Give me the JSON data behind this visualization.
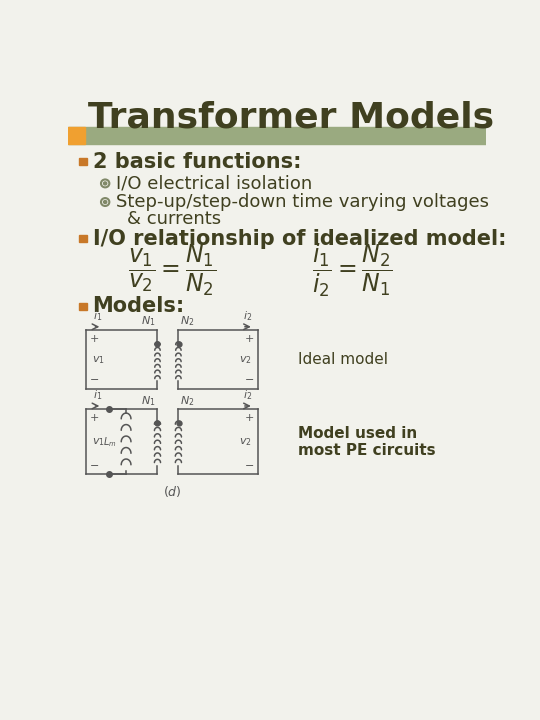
{
  "title": "Transformer Models",
  "title_color": "#404020",
  "title_fontsize": 26,
  "bg_color": "#f2f2ec",
  "header_bar_color": "#9aaa80",
  "header_orange_color": "#f0a030",
  "bullet_color": "#c87828",
  "sub_bullet_color": "#808868",
  "text_color": "#404020",
  "bullet1_text": "2 basic functions:",
  "sub1_text": "I/O electrical isolation",
  "sub2_line1": "Step-up/step-down time varying voltages",
  "sub2_line2": "& currents",
  "bullet2_text": "I/O relationship of idealized model:",
  "bullet3_text": "Models:",
  "eq1": "$\\dfrac{v_1}{v_2} = \\dfrac{N_1}{N_2}$",
  "eq2": "$\\dfrac{i_1}{i_2} = \\dfrac{N_2}{N_1}$",
  "ideal_model_label": "Ideal model",
  "pe_model_label": "Model used in\nmost PE circuits",
  "font_main": 13,
  "font_bullet": 15,
  "font_eq": 17,
  "circuit_color": "#555555"
}
